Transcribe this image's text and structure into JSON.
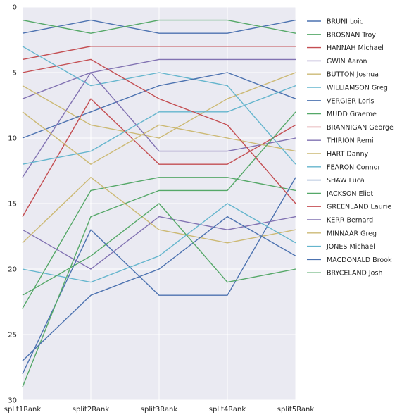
{
  "chart_data": {
    "type": "line",
    "title": "",
    "xlabel": "",
    "ylabel": "",
    "categories": [
      "split1Rank",
      "split2Rank",
      "split3Rank",
      "split4Rank",
      "split5Rank"
    ],
    "ylim": [
      30,
      0
    ],
    "y_inverted": true,
    "yticks": [
      "0",
      "5",
      "10",
      "15",
      "20",
      "25",
      "30"
    ],
    "grid": true,
    "legend_position": "right",
    "series": [
      {
        "name": "BRUNI Loic",
        "color": "#4c72b0",
        "values": [
          2,
          1,
          2,
          2,
          1
        ]
      },
      {
        "name": "BROSNAN Troy",
        "color": "#55a868",
        "values": [
          1,
          2,
          1,
          1,
          2
        ]
      },
      {
        "name": "HANNAH Michael",
        "color": "#c44e52",
        "values": [
          4,
          3,
          3,
          3,
          3
        ]
      },
      {
        "name": "GWIN Aaron",
        "color": "#8172b2",
        "values": [
          7,
          5,
          4,
          4,
          4
        ]
      },
      {
        "name": "BUTTON Joshua",
        "color": "#ccb974",
        "values": [
          6,
          9,
          10,
          7,
          5
        ]
      },
      {
        "name": "WILLIAMSON Greg",
        "color": "#64b5cd",
        "values": [
          3,
          6,
          5,
          6,
          12
        ]
      },
      {
        "name": "VERGIER Loris",
        "color": "#4c72b0",
        "values": [
          10,
          8,
          6,
          5,
          7
        ]
      },
      {
        "name": "MUDD Graeme",
        "color": "#55a868",
        "values": [
          23,
          14,
          13,
          13,
          14
        ]
      },
      {
        "name": "BRANNIGAN George",
        "color": "#c44e52",
        "values": [
          16,
          7,
          12,
          12,
          9
        ]
      },
      {
        "name": "THIRION Remi",
        "color": "#8172b2",
        "values": [
          13,
          5,
          11,
          11,
          10
        ]
      },
      {
        "name": "HART Danny",
        "color": "#ccb974",
        "values": [
          8,
          12,
          9,
          10,
          11
        ]
      },
      {
        "name": "FEARON Connor",
        "color": "#64b5cd",
        "values": [
          12,
          11,
          8,
          8,
          6
        ]
      },
      {
        "name": "SHAW Luca",
        "color": "#4c72b0",
        "values": [
          28,
          17,
          22,
          22,
          13
        ]
      },
      {
        "name": "JACKSON Eliot",
        "color": "#55a868",
        "values": [
          29,
          16,
          14,
          14,
          8
        ]
      },
      {
        "name": "GREENLAND Laurie",
        "color": "#c44e52",
        "values": [
          5,
          4,
          7,
          9,
          15
        ]
      },
      {
        "name": "KERR Bernard",
        "color": "#8172b2",
        "values": [
          17,
          20,
          16,
          17,
          16
        ]
      },
      {
        "name": "MINNAAR Greg",
        "color": "#ccb974",
        "values": [
          18,
          13,
          17,
          18,
          17
        ]
      },
      {
        "name": "JONES Michael",
        "color": "#64b5cd",
        "values": [
          20,
          21,
          19,
          15,
          18
        ]
      },
      {
        "name": "MACDONALD Brook",
        "color": "#4c72b0",
        "values": [
          27,
          22,
          20,
          16,
          19
        ]
      },
      {
        "name": "BRYCELAND Josh",
        "color": "#55a868",
        "values": [
          22,
          19,
          15,
          21,
          20
        ]
      }
    ]
  }
}
